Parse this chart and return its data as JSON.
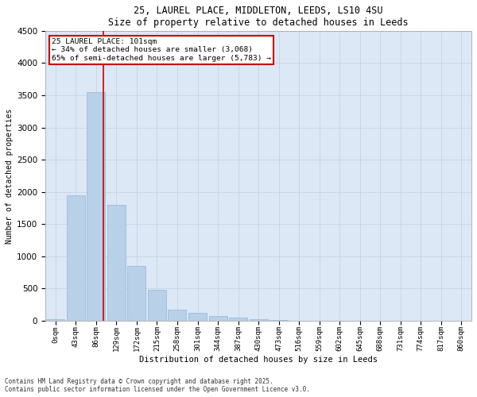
{
  "title1": "25, LAUREL PLACE, MIDDLETON, LEEDS, LS10 4SU",
  "title2": "Size of property relative to detached houses in Leeds",
  "xlabel": "Distribution of detached houses by size in Leeds",
  "ylabel": "Number of detached properties",
  "bar_color": "#b8d0e8",
  "bar_edge_color": "#90b8d8",
  "background_color": "#dce8f5",
  "categories": [
    "0sqm",
    "43sqm",
    "86sqm",
    "129sqm",
    "172sqm",
    "215sqm",
    "258sqm",
    "301sqm",
    "344sqm",
    "387sqm",
    "430sqm",
    "473sqm",
    "516sqm",
    "559sqm",
    "602sqm",
    "645sqm",
    "688sqm",
    "731sqm",
    "774sqm",
    "817sqm",
    "860sqm"
  ],
  "values": [
    30,
    1950,
    3550,
    1800,
    850,
    480,
    175,
    120,
    80,
    55,
    20,
    8,
    3,
    2,
    1,
    1,
    0,
    0,
    0,
    0,
    0
  ],
  "ylim": [
    0,
    4500
  ],
  "yticks": [
    0,
    500,
    1000,
    1500,
    2000,
    2500,
    3000,
    3500,
    4000,
    4500
  ],
  "property_line_x": 2.35,
  "annotation_line1": "25 LAUREL PLACE: 101sqm",
  "annotation_line2": "← 34% of detached houses are smaller (3,068)",
  "annotation_line3": "65% of semi-detached houses are larger (5,783) →",
  "annotation_box_color": "#ffffff",
  "annotation_box_edge_color": "#cc0000",
  "footnote1": "Contains HM Land Registry data © Crown copyright and database right 2025.",
  "footnote2": "Contains public sector information licensed under the Open Government Licence v3.0."
}
